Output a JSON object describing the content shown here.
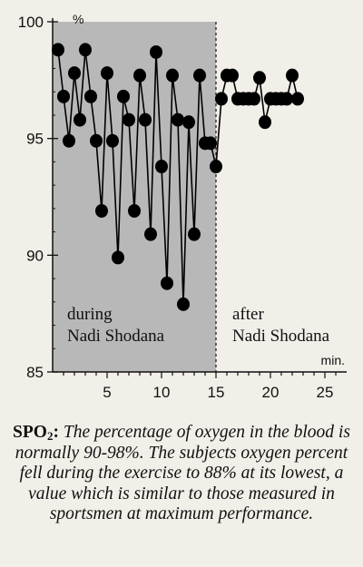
{
  "chart_data": {
    "type": "line",
    "y_unit": "%",
    "x_unit": "min.",
    "xlim": [
      0,
      27
    ],
    "ylim": [
      85,
      100
    ],
    "x_ticks": [
      5,
      10,
      15,
      20,
      25
    ],
    "y_ticks": [
      85,
      90,
      95,
      100
    ],
    "grid": false,
    "shaded_region": {
      "x": [
        0,
        15
      ],
      "color": "#b8b8b8"
    },
    "phases": [
      {
        "line1": "during",
        "line2": "Nadi Shodana"
      },
      {
        "line1": "after",
        "line2": "Nadi Shodana"
      }
    ],
    "series": [
      {
        "x": [
          0.5,
          1.0,
          1.5,
          2.0,
          2.5,
          3.0,
          3.5,
          4.0,
          4.5,
          5.0,
          5.5,
          6.0,
          6.5,
          7.0,
          7.5,
          8.0,
          8.5,
          9.0,
          9.5,
          10.0,
          10.5,
          11.0,
          11.5,
          12.0,
          12.5,
          13.0,
          13.5,
          14.0,
          14.5,
          15.0,
          15.5,
          16.0,
          16.5,
          17.0,
          17.5,
          18.0,
          18.5,
          19.0,
          19.5,
          20.0,
          20.5,
          21.0,
          21.5,
          22.0,
          22.5
        ],
        "values": [
          98.8,
          96.8,
          94.9,
          97.8,
          95.8,
          98.8,
          96.8,
          94.9,
          91.9,
          97.8,
          94.9,
          89.9,
          96.8,
          95.8,
          91.9,
          97.7,
          95.8,
          90.9,
          98.7,
          93.8,
          88.8,
          97.7,
          95.8,
          87.9,
          95.7,
          90.9,
          97.7,
          94.8,
          94.8,
          93.8,
          96.7,
          97.7,
          97.7,
          96.7,
          96.7,
          96.7,
          96.7,
          97.6,
          95.7,
          96.7,
          96.7,
          96.7,
          96.7,
          97.7,
          96.7
        ]
      }
    ]
  },
  "caption": {
    "label": "SPO",
    "label_sub": "2",
    "label_suffix": ":",
    "text": "The percentage of oxygen in the blood is normally 90-98%. The subjects oxygen percent fell during the exercise to 88% at its lowest, a value which is similar to those measured in sportsmen at maximum performance."
  }
}
